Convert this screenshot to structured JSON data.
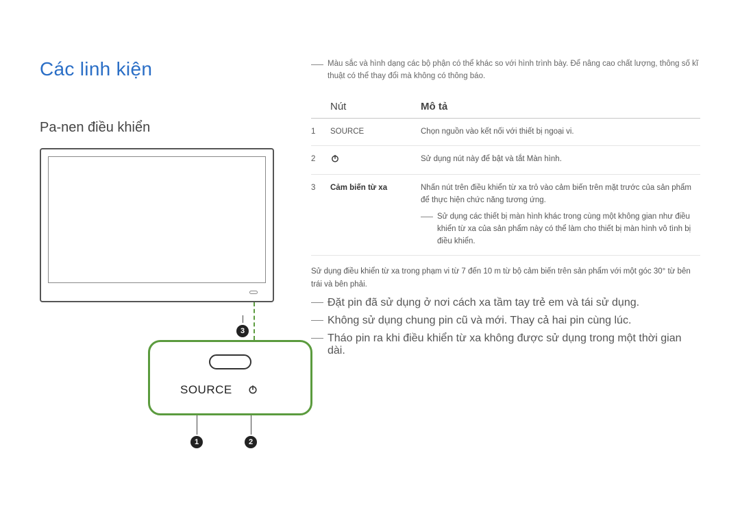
{
  "colors": {
    "title": "#2a6ec6",
    "panel_border": "#5b9b3e",
    "text": "#555555",
    "rule": "#c6c6c6",
    "marker_bg": "#222222"
  },
  "main_title": "Các linh kiện",
  "section_title": "Pa-nen điều khiển",
  "diagram": {
    "source_label": "SOURCE",
    "markers": {
      "m1": "1",
      "m2": "2",
      "m3": "3"
    }
  },
  "top_note": "Màu sắc và hình dạng các bộ phận có thể khác so với hình trình bày. Để nâng cao chất lượng, thông số kĩ thuật có thể thay đổi mà không có thông báo.",
  "table": {
    "header_button": "Nút",
    "header_desc": "Mô tả",
    "rows": [
      {
        "n": "1",
        "btn": "SOURCE",
        "btn_bold": false,
        "desc": "Chọn nguồn vào kết nối với thiết bị ngoại vi.",
        "has_icon": false
      },
      {
        "n": "2",
        "btn": "",
        "btn_bold": false,
        "desc": "Sử dụng nút này để bật và tắt Màn hình.",
        "has_icon": true
      },
      {
        "n": "3",
        "btn": "Cảm biến từ xa",
        "btn_bold": true,
        "desc": "Nhấn nút trên điều khiển từ xa trỏ vào cảm biến trên mặt trước của sản phẩm để thực hiện chức năng tương ứng.",
        "sub": "Sử dụng các thiết bị màn hình khác trong cùng một không gian như điều khiển từ xa của sản phẩm này có thể làm cho thiết bị màn hình vô tình bị điều khiển.",
        "has_icon": false
      }
    ]
  },
  "body": {
    "range": "Sử dụng điều khiển từ xa trong phạm vi từ 7 đến 10 m từ bộ cảm biến trên sản phẩm với một góc 30° từ bên trái và bên phải.",
    "notes": [
      "Đặt pin đã sử dụng ở nơi cách xa tầm tay trẻ em và tái sử dụng.",
      "Không sử dụng chung pin cũ và mới. Thay cả hai pin cùng lúc.",
      "Tháo pin ra khi điều khiển từ xa không được sử dụng trong một thời gian dài."
    ]
  }
}
